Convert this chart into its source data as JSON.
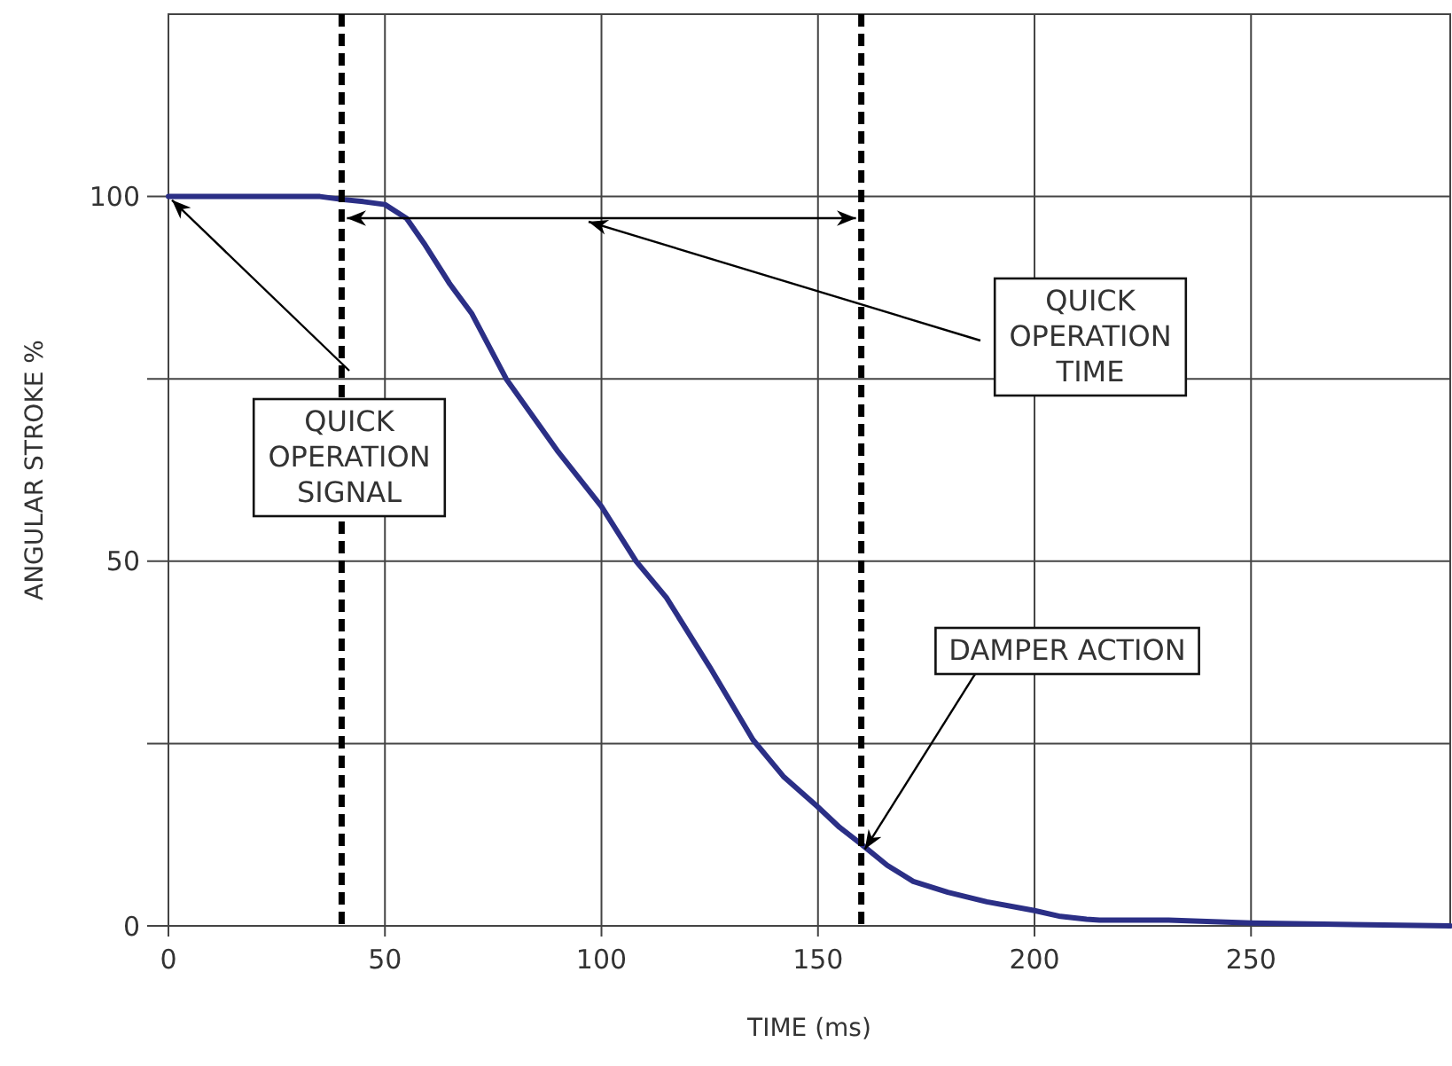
{
  "chart_data": {
    "type": "line",
    "xlabel": "TIME (ms)",
    "ylabel": "ANGULAR STROKE %",
    "xlim": [
      0,
      296
    ],
    "ylim": [
      0,
      125
    ],
    "xticks": [
      0,
      50,
      100,
      150,
      200,
      250
    ],
    "yticks": [
      0,
      {
        "value": 25,
        "label": null
      },
      50,
      {
        "value": 75,
        "label": null
      },
      100
    ],
    "grid": true,
    "marker": "none",
    "line_style": "solid",
    "series": [
      {
        "color": "#2b2f86",
        "x": [
          0,
          20,
          35,
          40,
          45,
          50,
          55,
          59,
          65,
          70,
          78,
          90,
          100,
          108,
          115,
          125,
          135,
          142,
          150,
          155,
          160,
          166,
          172,
          180,
          189,
          200,
          206,
          212,
          215,
          231,
          250,
          270,
          296
        ],
        "values": [
          100,
          100,
          100,
          99.6,
          99.3,
          98.9,
          97,
          93.6,
          88,
          84,
          75,
          65,
          57.5,
          50,
          45,
          35.5,
          25.5,
          20.5,
          16.3,
          13.5,
          11.2,
          8.3,
          6.1,
          4.6,
          3.3,
          2.1,
          1.3,
          0.9,
          0.8,
          0.8,
          0.4,
          0.2,
          0
        ]
      }
    ],
    "ref_lines": [
      {
        "axis": "x",
        "value": 40,
        "color": "#000000",
        "line_style": "dashed"
      },
      {
        "axis": "x",
        "value": 160,
        "color": "#000000",
        "line_style": "dashed"
      }
    ],
    "annotations": [
      {
        "text": "QUICK OPERATION SIGNAL",
        "x": 0,
        "y": 100
      },
      "QUICK OPERATION TIME",
      {
        "text": "DAMPER ACTION",
        "x": 160,
        "y": 11
      }
    ]
  }
}
